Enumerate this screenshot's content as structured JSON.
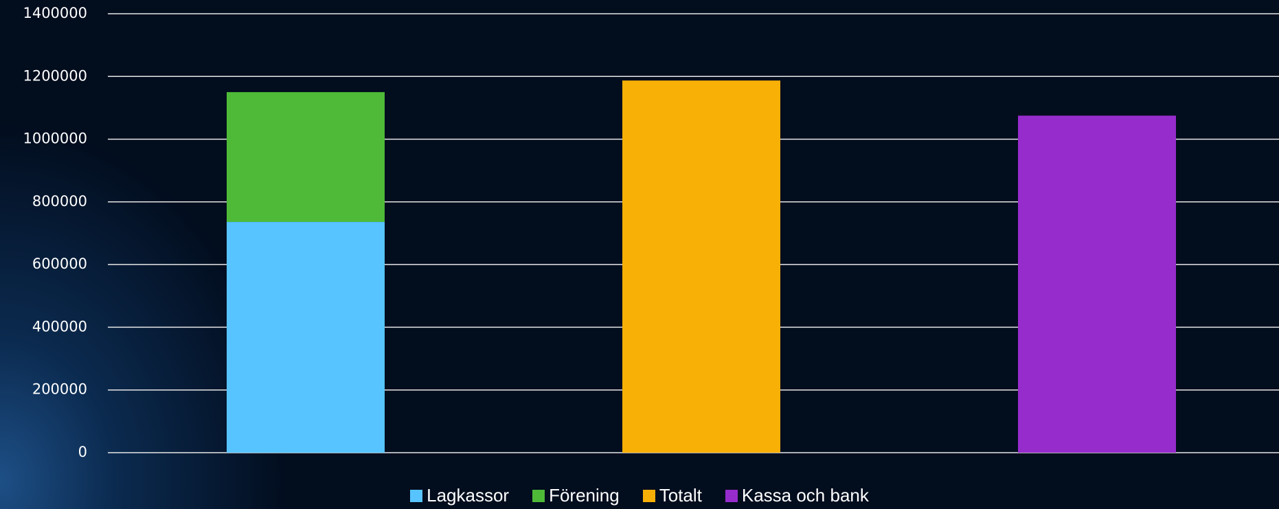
{
  "chart_data": {
    "type": "bar",
    "stacked": true,
    "categories": [
      null,
      null,
      null
    ],
    "series": [
      {
        "name": "Lagkassor",
        "color": "#57c4ff",
        "values": [
          736000,
          null,
          null
        ]
      },
      {
        "name": "Förening",
        "color": "#4eba38",
        "values": [
          414000,
          null,
          null
        ]
      },
      {
        "name": "Totalt",
        "color": "#f8b006",
        "values": [
          null,
          1187000,
          null
        ]
      },
      {
        "name": "Kassa och bank",
        "color": "#972ccc",
        "values": [
          null,
          null,
          1075000
        ]
      }
    ],
    "ylim": [
      0,
      1400000
    ],
    "yticks": [
      0,
      200000,
      400000,
      600000,
      800000,
      1000000,
      1200000,
      1400000
    ],
    "grid": true,
    "legend": "bottom"
  }
}
